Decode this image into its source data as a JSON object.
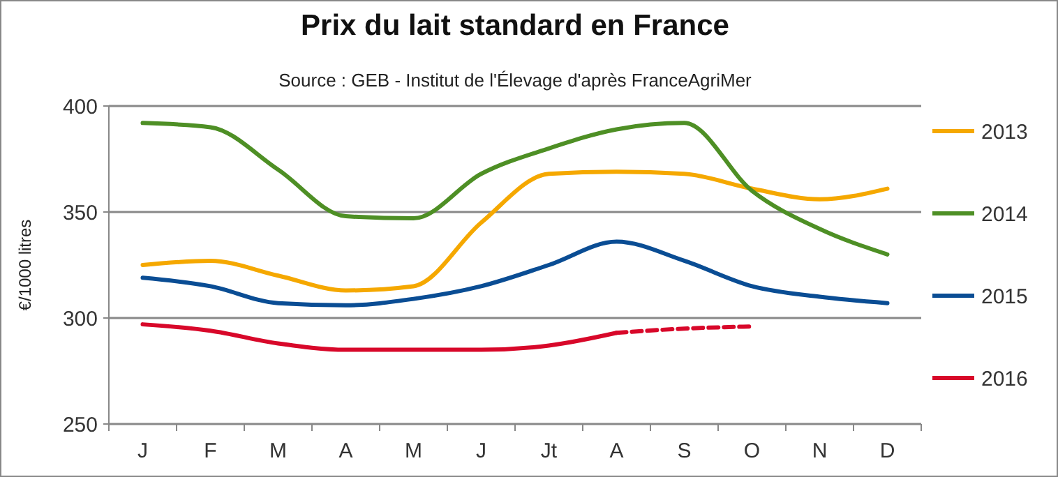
{
  "chart_data": {
    "type": "line",
    "title": "Prix du lait standard en France",
    "subtitle": "Source : GEB - Institut de l'Élevage d'après FranceAgriMer",
    "ylabel": "€/1000 litres",
    "categories": [
      "J",
      "F",
      "M",
      "A",
      "M",
      "J",
      "Jt",
      "A",
      "S",
      "O",
      "N",
      "D"
    ],
    "ylim": [
      250,
      400
    ],
    "yticks": [
      250,
      300,
      350,
      400
    ],
    "grid": "y",
    "legend": "right",
    "marker": "none",
    "series": [
      {
        "name": "2013",
        "color": "#f5a800",
        "values": [
          325,
          327,
          320,
          313,
          315,
          345,
          368,
          369,
          368,
          361,
          356,
          361
        ]
      },
      {
        "name": "2014",
        "color": "#4e8f25",
        "values": [
          392,
          390,
          370,
          348,
          347,
          368,
          380,
          389,
          392,
          360,
          342,
          330
        ]
      },
      {
        "name": "2015",
        "color": "#0a4d94",
        "values": [
          319,
          315,
          307,
          306,
          309,
          315,
          325,
          336,
          327,
          315,
          310,
          307
        ]
      },
      {
        "name": "2016",
        "color": "#d8082a",
        "values": [
          297,
          294,
          288,
          285,
          285,
          285,
          287,
          293,
          null,
          null,
          null,
          null
        ]
      },
      {
        "color": "#d8082a",
        "line_style": "dashed",
        "values": [
          null,
          null,
          null,
          null,
          null,
          null,
          null,
          293,
          295,
          296,
          null,
          null
        ]
      }
    ]
  }
}
